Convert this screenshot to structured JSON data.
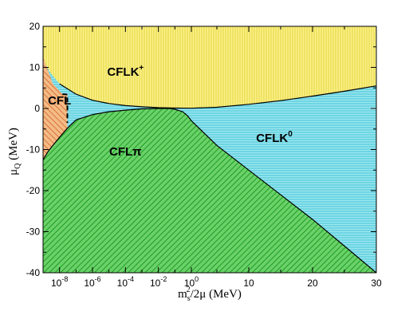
{
  "chart_data": {
    "type": "area",
    "title": "",
    "xlabel": {
      "base": "m",
      "sub": "s",
      "sup": "2",
      "rest": "/2μ  (MeV)"
    },
    "ylabel": {
      "base": "μ",
      "sub": "Q",
      "rest": "  (MeV)"
    },
    "ylim": [
      -40,
      20
    ],
    "y_ticks": [
      20,
      10,
      0,
      -10,
      -20,
      -30,
      -40
    ],
    "x_axis": {
      "note": "split axis: logarithmic from 1e-9 to 1, linear from 1 to 30",
      "log_range": [
        1e-09,
        1
      ],
      "linear_range": [
        1,
        30
      ],
      "log_ticks": [
        {
          "base": "10",
          "exp": "-8",
          "value": 1e-08
        },
        {
          "base": "10",
          "exp": "-6",
          "value": 1e-06
        },
        {
          "base": "10",
          "exp": "-4",
          "value": 0.0001
        },
        {
          "base": "10",
          "exp": "-2",
          "value": 0.01
        },
        {
          "base": "10",
          "exp": "0",
          "value": 1
        }
      ],
      "linear_ticks": [
        10,
        20,
        30
      ]
    },
    "grid": false,
    "legend": "none",
    "regions": [
      {
        "name": "CFLK+",
        "label": "CFLK",
        "label_sup": "+",
        "color": "#fbf28a",
        "stroke": "#e0cf3a",
        "hatch": "vertical",
        "label_at": {
          "x": 0.0001,
          "y": 8
        }
      },
      {
        "name": "CFLK0",
        "label": "CFLK",
        "label_sup": "0",
        "color": "#9ee6ee",
        "stroke": "#3cc0d6",
        "hatch": "horizontal",
        "label_at": {
          "x": 14,
          "y": -8.2
        }
      },
      {
        "name": "CFLπ",
        "label": "CFLπ",
        "label_sup": "",
        "color": "#66cf66",
        "stroke": "#1f9c1f",
        "hatch": "diagonal",
        "label_at": {
          "x": 0.0001,
          "y": -11.5
        }
      },
      {
        "name": "CFL",
        "label": "CFL",
        "label_sup": "",
        "color": "#f2b27a",
        "stroke": "#d9743a",
        "hatch": "diagonal",
        "label_at": {
          "x": 1e-08,
          "y": 1
        }
      }
    ],
    "boundaries": {
      "upper_K_plus": [
        {
          "x": 1e-09,
          "y": 11.8
        },
        {
          "x": 3e-09,
          "y": 8.5
        },
        {
          "x": 1e-08,
          "y": 6
        },
        {
          "x": 1e-07,
          "y": 3.5
        },
        {
          "x": 1e-06,
          "y": 2
        },
        {
          "x": 1e-05,
          "y": 1.2
        },
        {
          "x": 0.0001,
          "y": 0.7
        },
        {
          "x": 0.001,
          "y": 0.4
        },
        {
          "x": 0.01,
          "y": 0.2
        },
        {
          "x": 0.1,
          "y": 0.1
        },
        {
          "x": 1,
          "y": 0.05
        },
        {
          "x": 5,
          "y": 0.3
        },
        {
          "x": 10,
          "y": 1
        },
        {
          "x": 15,
          "y": 1.9
        },
        {
          "x": 20,
          "y": 3
        },
        {
          "x": 25,
          "y": 4.2
        },
        {
          "x": 30,
          "y": 5.5
        }
      ],
      "pion_upper": [
        {
          "x": 1e-09,
          "y": -12.5
        },
        {
          "x": 2e-09,
          "y": -10.5
        },
        {
          "x": 4e-09,
          "y": -9
        },
        {
          "x": 1e-08,
          "y": -7
        },
        {
          "x": 3e-08,
          "y": -4.8
        },
        {
          "x": 1e-07,
          "y": -2.8
        },
        {
          "x": 1e-06,
          "y": -1.5
        },
        {
          "x": 1e-05,
          "y": -0.8
        },
        {
          "x": 0.0001,
          "y": -0.4
        },
        {
          "x": 0.001,
          "y": -0.1
        },
        {
          "x": 0.01,
          "y": 0
        },
        {
          "x": 0.05,
          "y": 0
        },
        {
          "x": 0.1,
          "y": -0.2
        },
        {
          "x": 0.3,
          "y": -0.8
        },
        {
          "x": 0.6,
          "y": -1.8
        },
        {
          "x": 1,
          "y": -3
        },
        {
          "x": 5,
          "y": -9
        },
        {
          "x": 10,
          "y": -15
        },
        {
          "x": 15,
          "y": -21
        },
        {
          "x": 20,
          "y": -27
        },
        {
          "x": 25,
          "y": -33.5
        },
        {
          "x": 30,
          "y": -40
        }
      ],
      "cfl_dashed": [
        {
          "x": 1e-09,
          "y": 12.5
        },
        {
          "x": 4e-09,
          "y": 6
        },
        {
          "x": 1.5e-08,
          "y": 3.5
        },
        {
          "x": 3e-08,
          "y": 3.4
        },
        {
          "x": 3e-08,
          "y": -3.5
        }
      ]
    }
  }
}
